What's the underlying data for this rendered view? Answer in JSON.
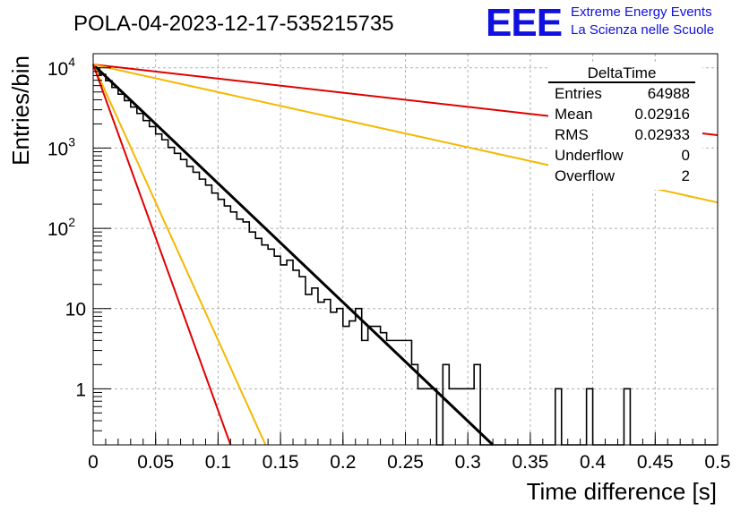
{
  "title": "POLA-04-2023-12-17-535215735",
  "logo": {
    "text": "EEE",
    "line1": "Extreme Energy Events",
    "line2": "La Scienza nelle Scuole",
    "color": "#1010e0"
  },
  "stats": {
    "name": "DeltaTime",
    "rows": [
      {
        "label": "Entries",
        "value": "64988"
      },
      {
        "label": "Mean",
        "value": "0.02916"
      },
      {
        "label": "RMS",
        "value": "0.02933"
      },
      {
        "label": "Underflow",
        "value": "0"
      },
      {
        "label": "Overflow",
        "value": "2"
      }
    ]
  },
  "chart_data": {
    "type": "line",
    "xlabel": "Time difference [s]",
    "ylabel": "Entries/bin",
    "xlim": [
      0,
      0.5
    ],
    "ylim": [
      0.2,
      15000
    ],
    "yscale": "log",
    "grid": true,
    "x_ticks": [
      "0",
      "0.05",
      "0.1",
      "0.15",
      "0.2",
      "0.25",
      "0.3",
      "0.35",
      "0.4",
      "0.45",
      "0.5"
    ],
    "y_ticks": [
      {
        "value": 1,
        "base": "1",
        "exp": ""
      },
      {
        "value": 10,
        "base": "10",
        "exp": ""
      },
      {
        "value": 100,
        "base": "10",
        "exp": "2"
      },
      {
        "value": 1000,
        "base": "10",
        "exp": "3"
      },
      {
        "value": 10000,
        "base": "10",
        "exp": "4"
      }
    ],
    "histogram": {
      "bin_width": 0.005,
      "color": "#000000",
      "values": [
        10000,
        8300,
        6900,
        5700,
        4700,
        3900,
        3250,
        2700,
        2200,
        1850,
        1500,
        1270,
        1020,
        860,
        720,
        590,
        500,
        410,
        345,
        275,
        230,
        190,
        160,
        130,
        120,
        90,
        75,
        62,
        55,
        45,
        35,
        40,
        30,
        25,
        15,
        18,
        12,
        13,
        9,
        10,
        6,
        7,
        10,
        4,
        6,
        6,
        5,
        4,
        4,
        4,
        4,
        2,
        1,
        1,
        1,
        0,
        2,
        1,
        1,
        1,
        1,
        2,
        0,
        0,
        0,
        0,
        0,
        0,
        0,
        0,
        0,
        0,
        0,
        0,
        1,
        0,
        0,
        0,
        0,
        1,
        0,
        0,
        0,
        0,
        0,
        1,
        0,
        0,
        0,
        0,
        0,
        0,
        0,
        0,
        0,
        0,
        0,
        0,
        0,
        0
      ]
    },
    "series": [
      {
        "color": "#000000",
        "x": [
          0,
          0.32
        ],
        "y": [
          11000,
          0.2
        ]
      },
      {
        "color": "#e00000",
        "x": [
          0,
          0.5
        ],
        "y": [
          11000,
          1450
        ]
      },
      {
        "color": "#f5b800",
        "x": [
          0,
          0.5
        ],
        "y": [
          11000,
          210
        ]
      },
      {
        "color": "#f5b800",
        "x": [
          0,
          0.138
        ],
        "y": [
          11000,
          0.2
        ]
      },
      {
        "color": "#e00000",
        "x": [
          0,
          0.11
        ],
        "y": [
          11000,
          0.2
        ]
      }
    ]
  }
}
